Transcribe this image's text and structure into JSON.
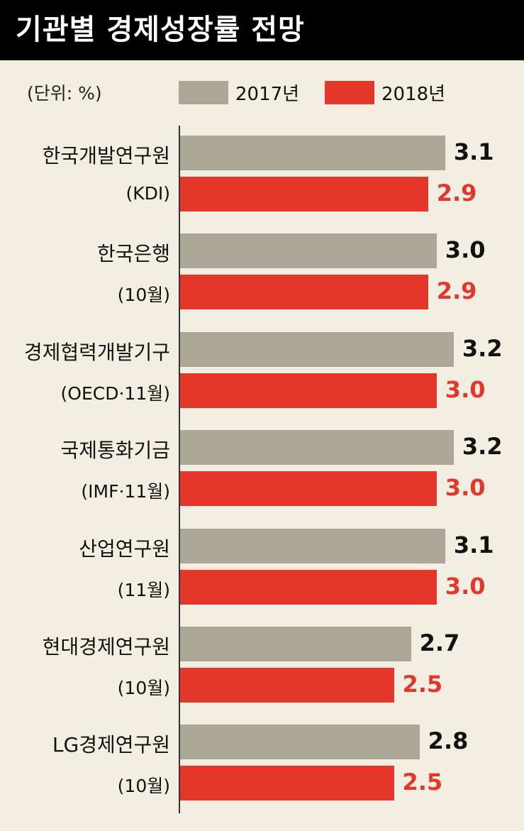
{
  "title": "기관별 경제성장률 전망",
  "unit_label": "(단위: %)",
  "colors": {
    "2017": "#aba796",
    "2018": "#e4362b",
    "background": "#f3eee2",
    "title_bg": "#000000"
  },
  "chart_data": {
    "type": "bar",
    "orientation": "horizontal",
    "title": "기관별 경제성장률 전망",
    "unit": "(단위: %)",
    "categories": [
      {
        "name": "한국개발연구원",
        "sub": "(KDI)"
      },
      {
        "name": "한국은행",
        "sub": "(10월)"
      },
      {
        "name": "경제협력개발기구",
        "sub": "(OECD·11월)"
      },
      {
        "name": "국제통화기금",
        "sub": "(IMF·11월)"
      },
      {
        "name": "산업연구원",
        "sub": "(11월)"
      },
      {
        "name": "현대경제연구원",
        "sub": "(10월)"
      },
      {
        "name": "LG경제연구원",
        "sub": "(10월)"
      }
    ],
    "series": [
      {
        "name": "2017년",
        "color": "#aba796",
        "values": [
          3.1,
          3.0,
          3.2,
          3.2,
          3.1,
          2.7,
          2.8
        ],
        "labels": [
          "3.1",
          "3.0",
          "3.2",
          "3.2",
          "3.1",
          "2.7",
          "2.8"
        ]
      },
      {
        "name": "2018년",
        "color": "#e4362b",
        "values": [
          2.9,
          2.9,
          3.0,
          3.0,
          3.0,
          2.5,
          2.5
        ],
        "labels": [
          "2.9",
          "2.9",
          "3.0",
          "3.0",
          "3.0",
          "2.5",
          "2.5"
        ]
      }
    ],
    "xlim": [
      0,
      3.2
    ],
    "legend": "top",
    "grid": false
  }
}
